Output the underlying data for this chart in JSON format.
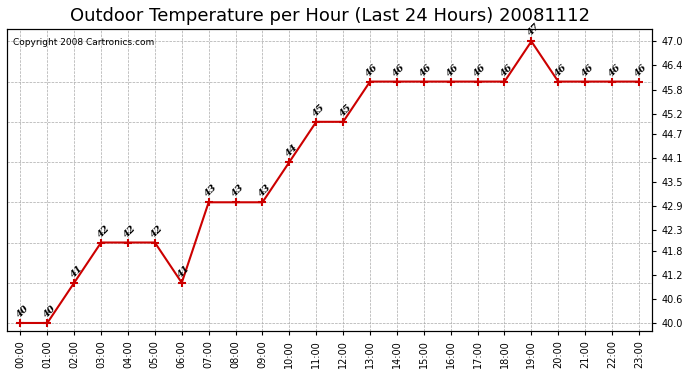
{
  "title": "Outdoor Temperature per Hour (Last 24 Hours) 20081112",
  "copyright_text": "Copyright 2008 Cartronics.com",
  "hours": [
    "00:00",
    "01:00",
    "02:00",
    "03:00",
    "04:00",
    "05:00",
    "06:00",
    "07:00",
    "08:00",
    "09:00",
    "10:00",
    "11:00",
    "12:00",
    "13:00",
    "14:00",
    "15:00",
    "16:00",
    "17:00",
    "18:00",
    "19:00",
    "20:00",
    "21:00",
    "22:00",
    "23:00"
  ],
  "temperatures": [
    40,
    40,
    41,
    42,
    42,
    42,
    41,
    43,
    43,
    43,
    44,
    45,
    45,
    46,
    46,
    46,
    46,
    46,
    46,
    47,
    46,
    46,
    46,
    46
  ],
  "line_color": "#cc0000",
  "marker_color": "#cc0000",
  "bg_color": "#ffffff",
  "grid_color": "#aaaaaa",
  "ylim_left": [
    39.8,
    47.3
  ],
  "ylim_right": [
    40.0,
    47.0
  ],
  "yticks_right": [
    40.0,
    40.6,
    41.2,
    41.8,
    42.3,
    42.9,
    43.5,
    44.1,
    44.7,
    45.2,
    45.8,
    46.4,
    47.0
  ],
  "title_fontsize": 13,
  "label_fontsize": 7,
  "annotation_fontsize": 7
}
